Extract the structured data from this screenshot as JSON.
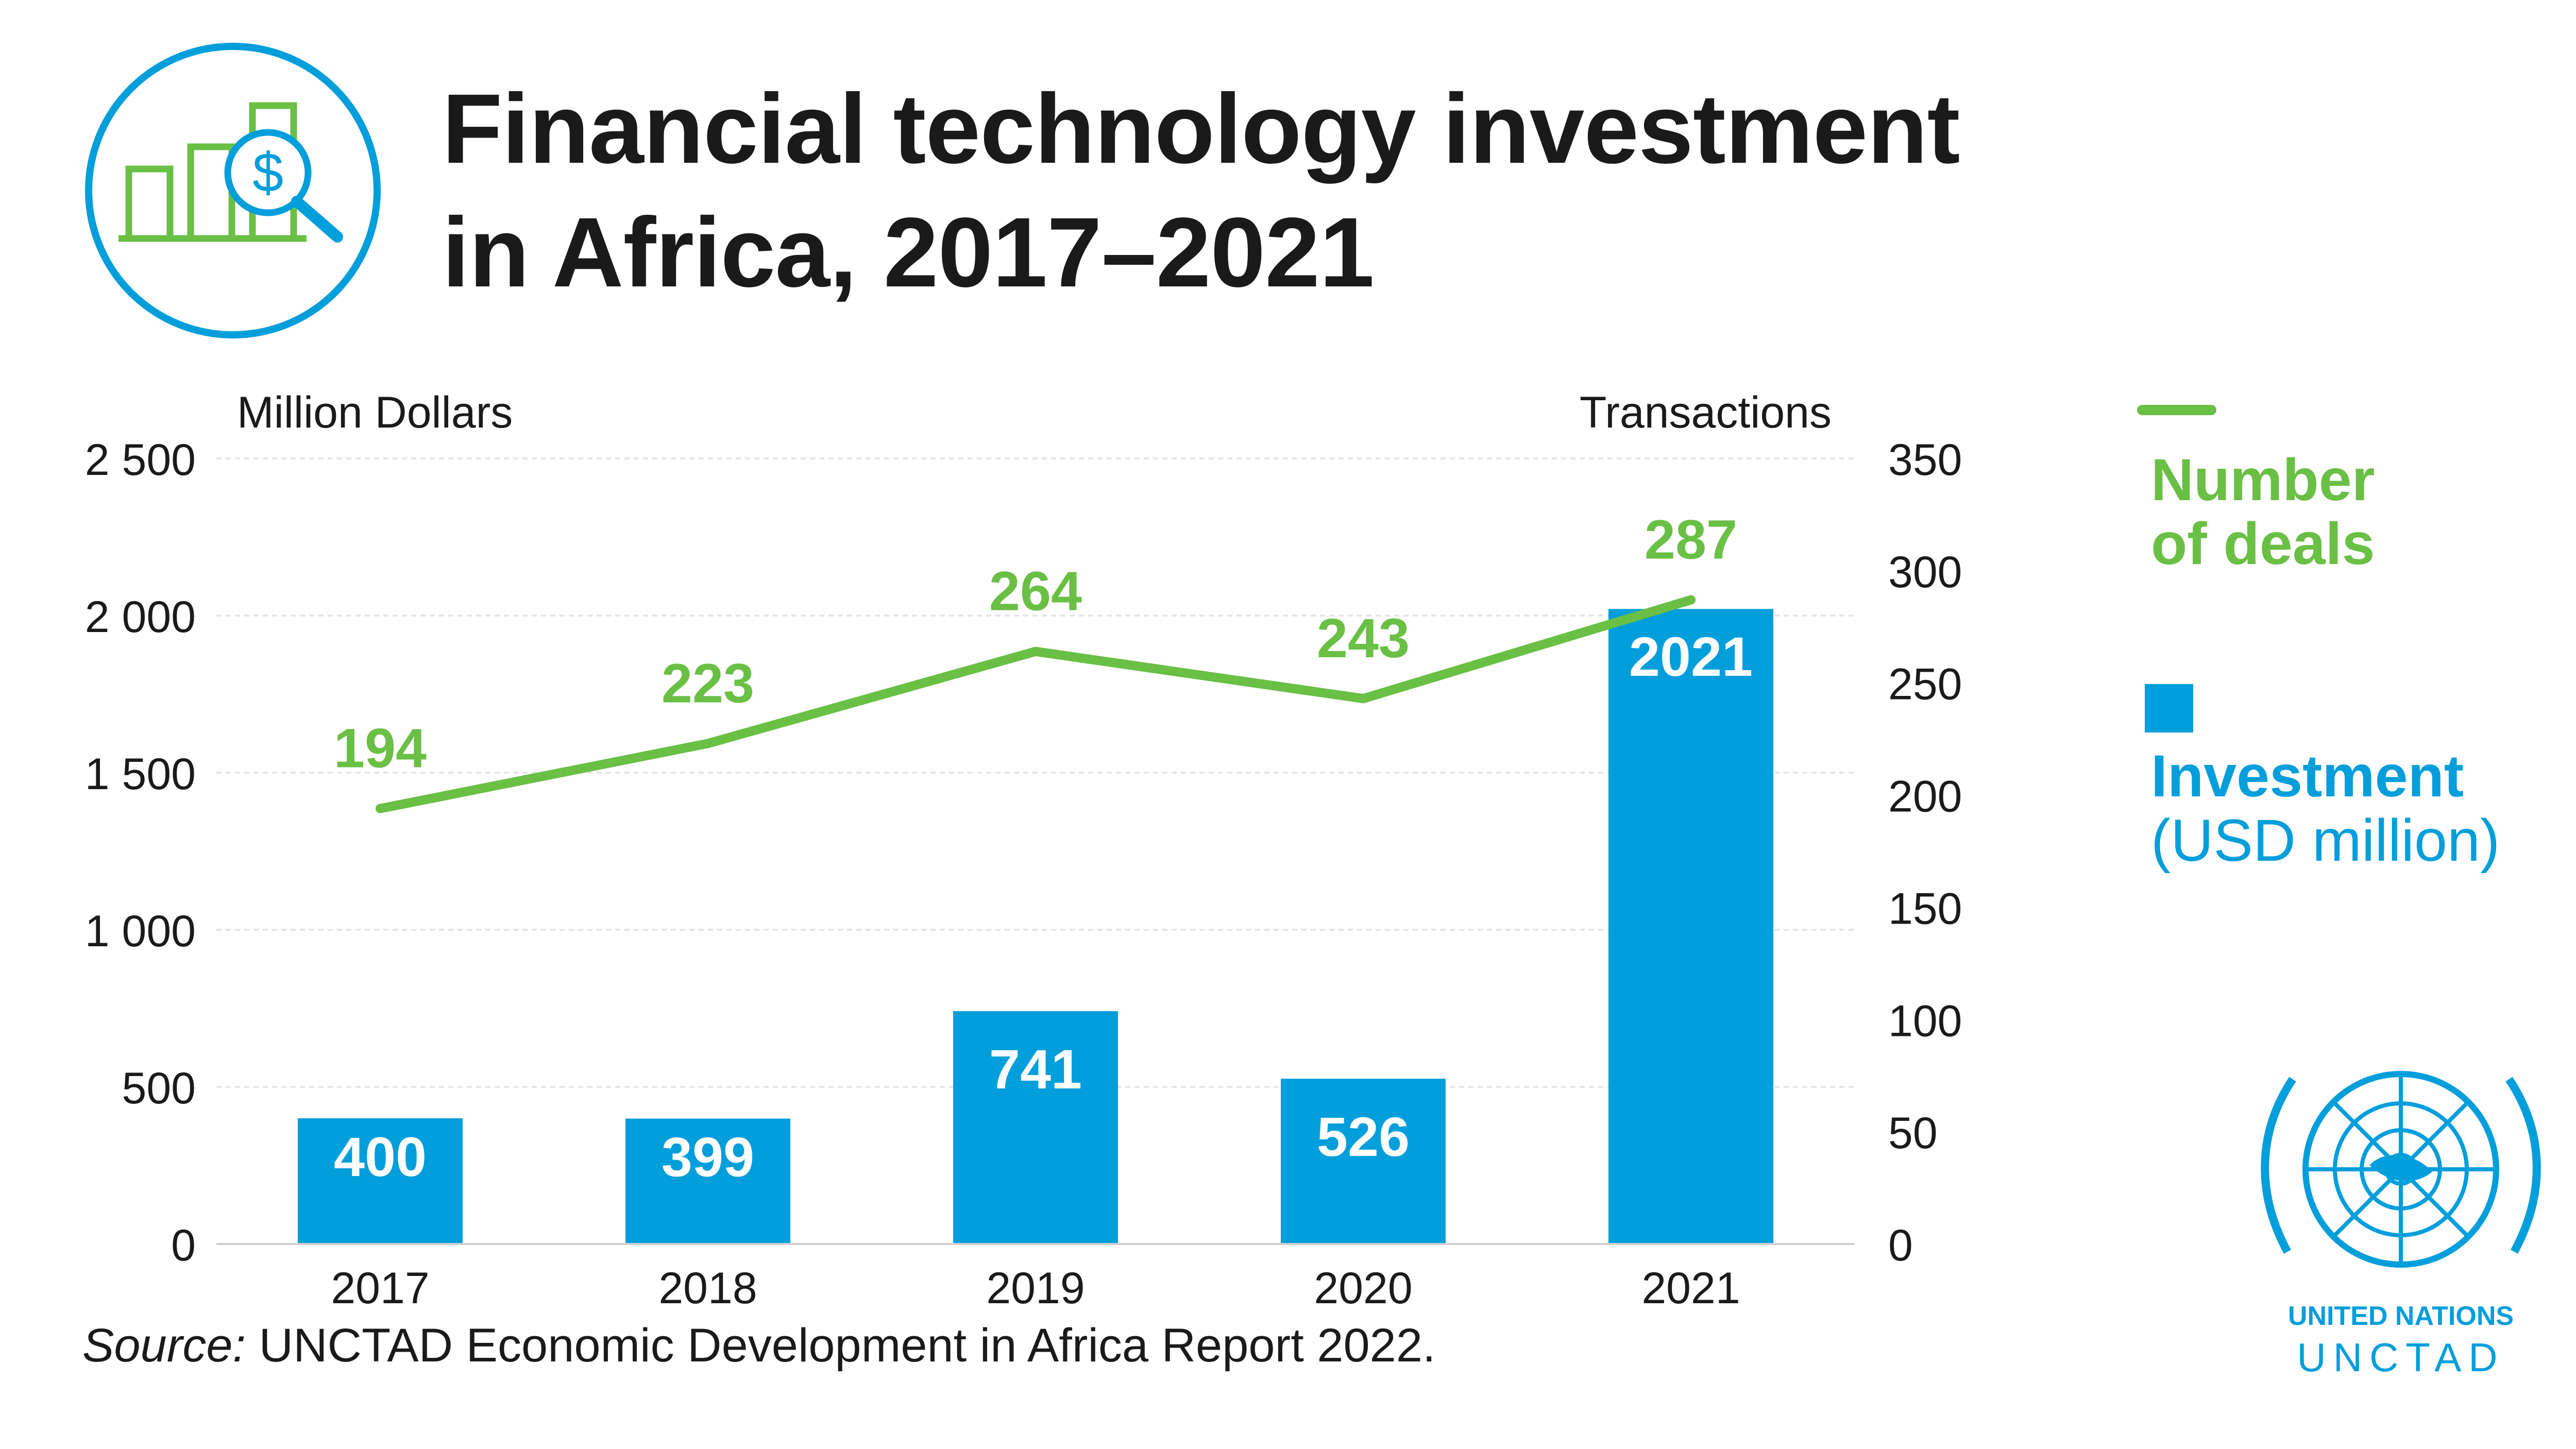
{
  "title_line1": "Financial technology investment",
  "title_line2": "in Africa, 2017–2021",
  "source_label": "Source:",
  "source_text": " UNCTAD Economic Development in Africa Report 2022.",
  "legend": {
    "deals_line1": "Number",
    "deals_line2": "of deals",
    "investment_label": "Investment",
    "investment_unit": "(USD million)"
  },
  "logo": {
    "org_name": "UNITED NATIONS",
    "org_short": "UNCTAD"
  },
  "icons": [
    "bar-chart-dollar-magnifier-icon",
    "un-emblem-icon"
  ],
  "colors": {
    "bar": "#009edb",
    "line": "#6abf45",
    "text": "#1a1a1a",
    "grid": "#e6e6e6"
  },
  "chart_data": {
    "type": "bar",
    "categories": [
      "2017",
      "2018",
      "2019",
      "2020",
      "2021"
    ],
    "ylabel_left": "Million Dollars",
    "ylabel_right": "Transactions",
    "left_ylim": [
      0,
      2500
    ],
    "left_ticks": [
      "0",
      "500",
      "1 000",
      "1 500",
      "2 000",
      "2 500"
    ],
    "left_tick_values": [
      0,
      500,
      1000,
      1500,
      2000,
      2500
    ],
    "right_ylim": [
      0,
      350
    ],
    "right_ticks": [
      "0",
      "50",
      "100",
      "150",
      "200",
      "250",
      "300",
      "350"
    ],
    "right_tick_values": [
      0,
      50,
      100,
      150,
      200,
      250,
      300,
      350
    ],
    "grid": true,
    "series": [
      {
        "name": "Investment (USD million)",
        "type": "bar",
        "axis": "left",
        "values": [
          400,
          399,
          741,
          526,
          2021
        ],
        "labels": [
          "400",
          "399",
          "741",
          "526",
          "2021"
        ]
      },
      {
        "name": "Number of deals",
        "type": "line",
        "axis": "right",
        "values": [
          194,
          223,
          264,
          243,
          287
        ],
        "labels": [
          "194",
          "223",
          "264",
          "243",
          "287"
        ]
      }
    ]
  }
}
